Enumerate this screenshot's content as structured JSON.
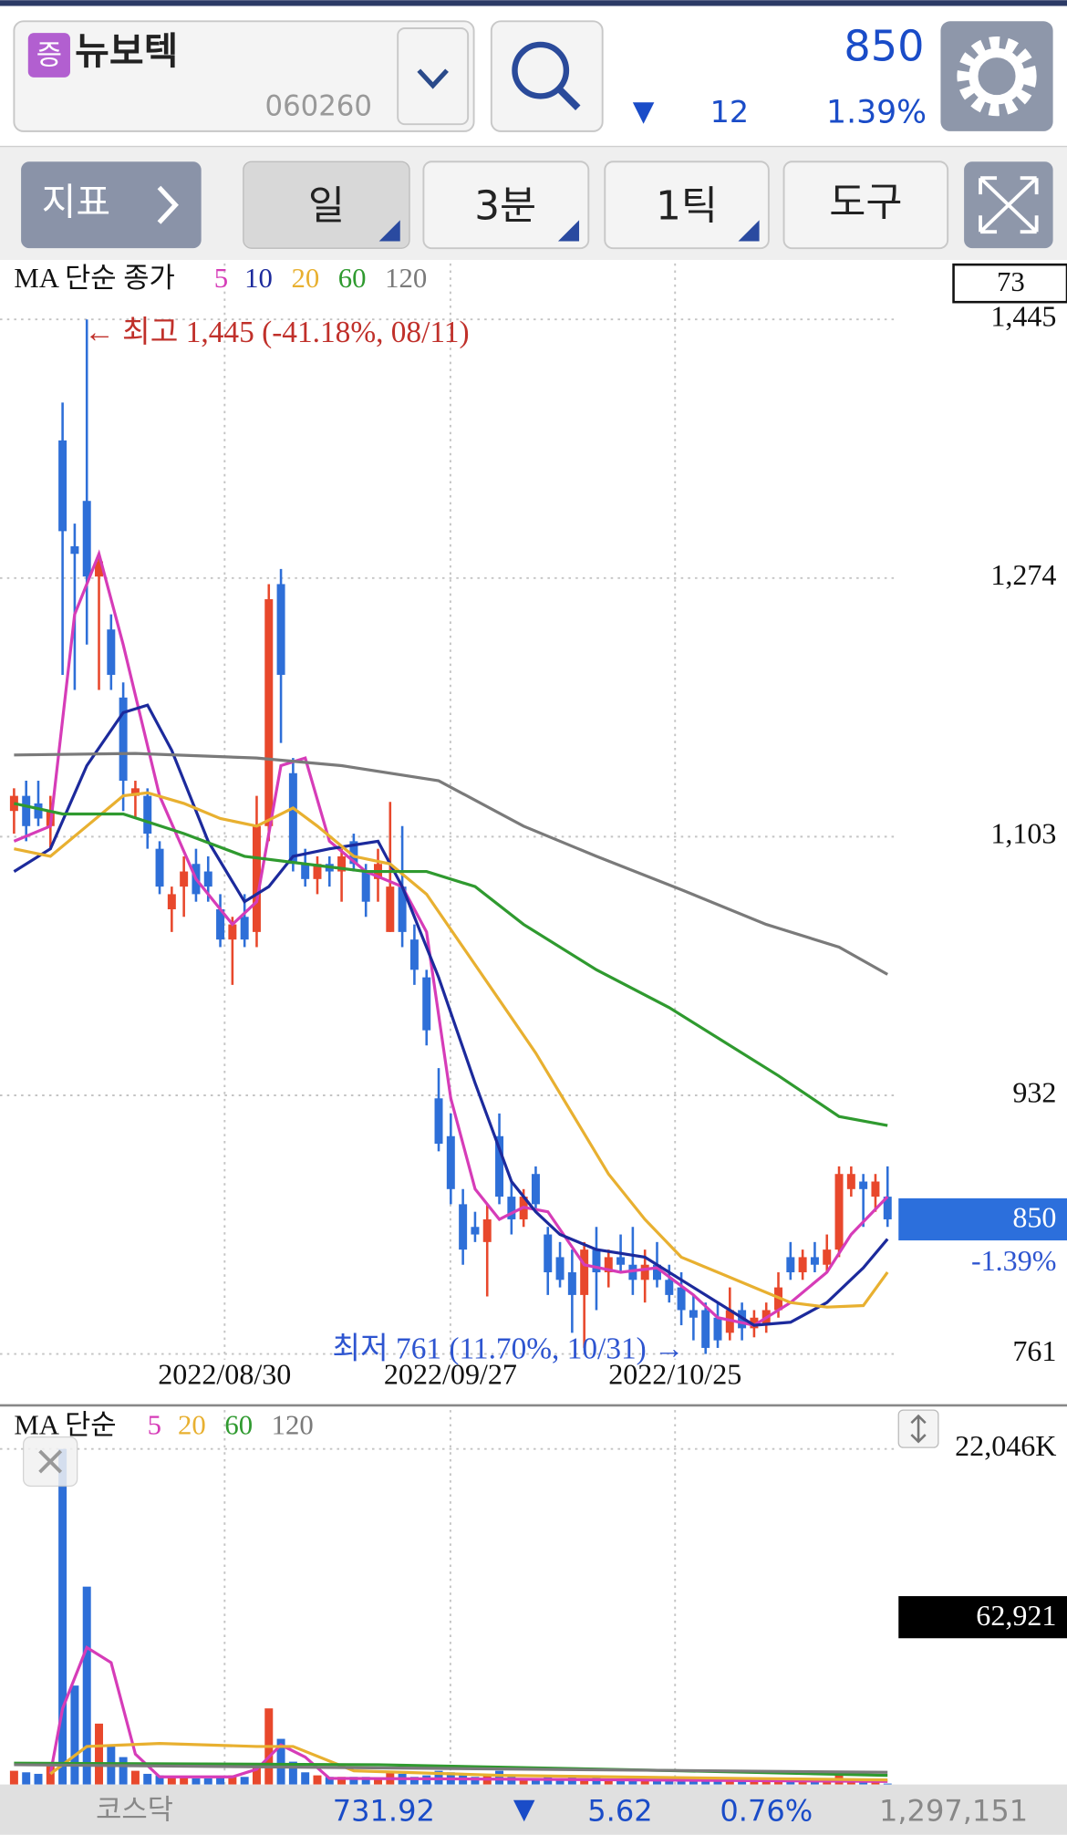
{
  "header": {
    "badge": "증",
    "name": "뉴보텍",
    "code": "060260",
    "price": "850",
    "change_arrow": "▼",
    "change": "12",
    "change_pct": "1.39%"
  },
  "toolbar": {
    "indicator": "지표",
    "period": "일",
    "minute": "3분",
    "tick": "1틱",
    "tools": "도구"
  },
  "chart_data": {
    "type": "candlestick",
    "legend_title": "MA 단순 종가",
    "top_box": "73",
    "up_color": "#e8482c",
    "down_color": "#2e6fd8",
    "open": [
      1120,
      1130,
      1125,
      1110,
      1365,
      1295,
      1325,
      1275,
      1240,
      1195,
      1130,
      1130,
      1095,
      1055,
      1070,
      1085,
      1080,
      1055,
      1035,
      1050,
      1040,
      1110,
      1270,
      1145,
      1085,
      1075,
      1085,
      1080,
      1100,
      1080,
      1075,
      1040,
      1070,
      1035,
      1010,
      930,
      905,
      860,
      845,
      835,
      905,
      865,
      850,
      880,
      840,
      825,
      815,
      800,
      830,
      815,
      825,
      820,
      810,
      820,
      810,
      805,
      790,
      790,
      785,
      775,
      790,
      778,
      780,
      790,
      825,
      815,
      825,
      820,
      830,
      870,
      875,
      865,
      865
    ],
    "high": [
      1135,
      1140,
      1140,
      1130,
      1390,
      1310,
      1445,
      1290,
      1250,
      1205,
      1140,
      1135,
      1100,
      1070,
      1090,
      1095,
      1090,
      1065,
      1050,
      1065,
      1130,
      1270,
      1280,
      1155,
      1095,
      1090,
      1090,
      1095,
      1105,
      1085,
      1095,
      1126,
      1110,
      1045,
      1015,
      950,
      920,
      870,
      855,
      860,
      920,
      875,
      870,
      885,
      845,
      835,
      830,
      835,
      845,
      830,
      840,
      845,
      830,
      835,
      820,
      815,
      800,
      795,
      795,
      805,
      795,
      790,
      795,
      815,
      835,
      830,
      835,
      840,
      885,
      885,
      880,
      880,
      885
    ],
    "low": [
      1105,
      1100,
      1110,
      1095,
      1210,
      1200,
      1230,
      1200,
      1200,
      1120,
      1115,
      1095,
      1065,
      1040,
      1050,
      1060,
      1060,
      1030,
      1005,
      1030,
      1030,
      1100,
      1165,
      1080,
      1070,
      1065,
      1070,
      1060,
      1080,
      1050,
      1060,
      1040,
      1030,
      1005,
      965,
      895,
      860,
      820,
      835,
      799,
      860,
      840,
      845,
      855,
      800,
      805,
      775,
      765,
      790,
      805,
      815,
      800,
      795,
      805,
      795,
      780,
      770,
      761,
      765,
      770,
      770,
      772,
      775,
      785,
      810,
      810,
      815,
      815,
      825,
      865,
      845,
      855,
      845
    ],
    "close": [
      1130,
      1110,
      1115,
      1120,
      1305,
      1290,
      1275,
      1285,
      1210,
      1140,
      1135,
      1105,
      1070,
      1065,
      1080,
      1065,
      1070,
      1035,
      1045,
      1035,
      1110,
      1260,
      1210,
      1085,
      1075,
      1085,
      1080,
      1090,
      1085,
      1060,
      1085,
      1070,
      1040,
      1015,
      975,
      900,
      870,
      830,
      840,
      850,
      865,
      850,
      865,
      860,
      815,
      810,
      800,
      830,
      815,
      825,
      820,
      810,
      820,
      810,
      800,
      790,
      785,
      765,
      770,
      790,
      778,
      785,
      790,
      805,
      815,
      825,
      820,
      830,
      880,
      880,
      870,
      875,
      850
    ],
    "change_label": "-1.39%",
    "ylim": [
      735.5,
      1482
    ],
    "yticks": [
      {
        "value": 1445,
        "label": "1,445"
      },
      {
        "value": 1274,
        "label": "1,274"
      },
      {
        "value": 1103,
        "label": "1,103"
      },
      932,
      761
    ],
    "x_labels": [
      "2022/08/30",
      "2022/09/27",
      "2022/10/25"
    ],
    "high_annotation": "← 최고 1,445 (-41.18%, 08/11)",
    "low_annotation": "최저 761 (11.70%, 10/31) →",
    "grid": true,
    "ma": [
      {
        "name": "5",
        "color": "#d63cb8",
        "x": [
          0,
          3,
          5,
          7,
          9,
          12,
          15,
          18,
          20,
          22,
          24,
          26,
          29,
          32,
          34,
          36,
          38,
          40,
          42,
          44,
          47,
          50,
          53,
          56,
          58,
          61,
          64,
          67,
          69,
          72
        ],
        "values": [
          1100,
          1110,
          1250,
          1290,
          1230,
          1130,
          1075,
          1045,
          1060,
          1150,
          1155,
          1100,
          1080,
          1070,
          1040,
          930,
          870,
          850,
          858,
          855,
          820,
          815,
          818,
          800,
          785,
          780,
          795,
          815,
          840,
          865
        ]
      },
      {
        "name": "10",
        "color": "#1c2a9c",
        "x": [
          0,
          3,
          6,
          9,
          11,
          13,
          16,
          19,
          21,
          23,
          26,
          30,
          32,
          35,
          38,
          41,
          43,
          45,
          48,
          52,
          55,
          58,
          61,
          64,
          67,
          70,
          72
        ],
        "values": [
          1080,
          1095,
          1150,
          1185,
          1190,
          1160,
          1100,
          1060,
          1070,
          1090,
          1095,
          1100,
          1070,
          1010,
          940,
          875,
          855,
          840,
          830,
          825,
          810,
          795,
          780,
          782,
          795,
          818,
          837
        ]
      },
      {
        "name": "20",
        "color": "#e8b030",
        "x": [
          0,
          3,
          6,
          9,
          11,
          14,
          17,
          20,
          23,
          25,
          28,
          31,
          34,
          37,
          40,
          43,
          46,
          49,
          52,
          55,
          58,
          61,
          64,
          67,
          70,
          72
        ],
        "values": [
          1095,
          1090,
          1110,
          1130,
          1132,
          1125,
          1115,
          1110,
          1122,
          1110,
          1090,
          1085,
          1065,
          1030,
          995,
          960,
          920,
          880,
          850,
          825,
          815,
          805,
          795,
          792,
          793,
          815
        ]
      },
      {
        "name": "60",
        "color": "#2f9a2f",
        "x": [
          0,
          4,
          9,
          14,
          19,
          24,
          29,
          34,
          38,
          42,
          48,
          54,
          58,
          63,
          68,
          72
        ],
        "values": [
          1125,
          1118,
          1118,
          1105,
          1090,
          1085,
          1080,
          1080,
          1070,
          1045,
          1015,
          990,
          970,
          945,
          918,
          912
        ]
      },
      {
        "name": "120",
        "color": "#7a7a7a",
        "x": [
          0,
          10,
          20,
          27,
          35,
          42,
          48,
          55,
          62,
          68,
          72
        ],
        "values": [
          1157,
          1158,
          1155,
          1150,
          1140,
          1110,
          1090,
          1068,
          1045,
          1030,
          1012
        ]
      }
    ],
    "volume": {
      "legend_title": "MA 단순",
      "values": [
        900,
        800,
        700,
        1200,
        22046,
        6500,
        13000,
        4000,
        2500,
        1800,
        900,
        700,
        600,
        500,
        500,
        400,
        400,
        500,
        600,
        500,
        1200,
        5000,
        3000,
        1500,
        800,
        600,
        500,
        500,
        500,
        500,
        400,
        900,
        700,
        500,
        600,
        900,
        800,
        700,
        500,
        600,
        900,
        500,
        400,
        400,
        500,
        400,
        500,
        400,
        500,
        300,
        300,
        300,
        300,
        300,
        300,
        400,
        300,
        400,
        300,
        300,
        300,
        300,
        300,
        300,
        400,
        300,
        300,
        300,
        700,
        400,
        300,
        300,
        62.921
      ],
      "last_label": "62,921",
      "ylim": [
        0,
        24600
      ],
      "yticks": [
        {
          "value": 22046,
          "label": "22,046K"
        }
      ],
      "ma": [
        {
          "name": "5",
          "color": "#d63cb8",
          "x": [
            3,
            4,
            6,
            8,
            10,
            12,
            18,
            20,
            22,
            24,
            26,
            40,
            72
          ],
          "values": [
            700,
            5000,
            9000,
            8000,
            2000,
            500,
            500,
            1000,
            2600,
            1800,
            400,
            350,
            200
          ]
        },
        {
          "name": "20",
          "color": "#e8b030",
          "x": [
            3,
            6,
            12,
            20,
            23,
            28,
            40,
            60,
            72
          ],
          "values": [
            700,
            2500,
            2700,
            2500,
            2500,
            900,
            600,
            400,
            300
          ]
        },
        {
          "name": "60",
          "color": "#2f9a2f",
          "x": [
            0,
            30,
            55,
            72
          ],
          "values": [
            1400,
            1300,
            900,
            600
          ]
        },
        {
          "name": "120",
          "color": "#7a7a7a",
          "x": [
            0,
            72
          ],
          "values": [
            1300,
            800
          ]
        }
      ]
    }
  },
  "footer": {
    "market": "코스닥",
    "index": "731.92",
    "arrow": "▼",
    "change": "5.62",
    "change_pct": "0.76%",
    "volume": "1,297,151"
  }
}
